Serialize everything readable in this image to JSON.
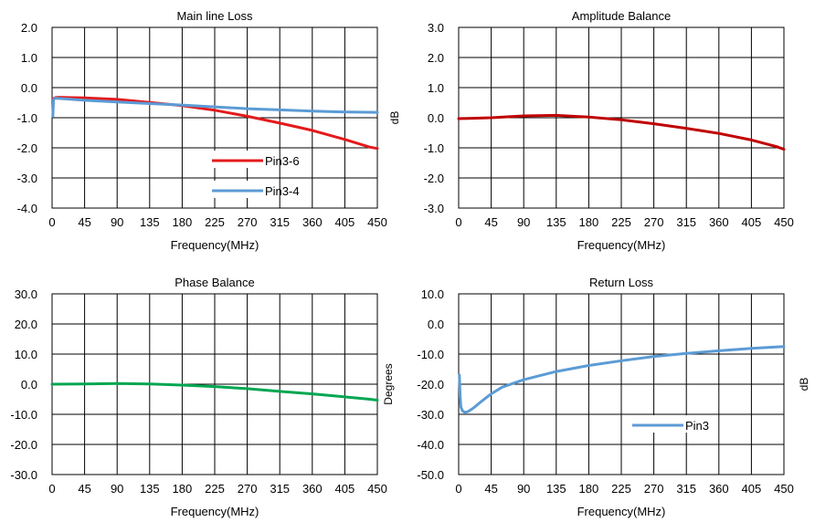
{
  "chart_data": [
    {
      "type": "line",
      "title": "Main line Loss",
      "xlabel": "Frequency(MHz)",
      "ylabel": "",
      "xlim": [
        0,
        450
      ],
      "ylim": [
        -4.0,
        2.0
      ],
      "xticks": [
        "0",
        "45",
        "90",
        "135",
        "180",
        "225",
        "270",
        "315",
        "360",
        "405",
        "450"
      ],
      "yticks": [
        "2.0",
        "1.0",
        "0.0",
        "-1.0",
        "-2.0",
        "-3.0",
        "-4.0"
      ],
      "grid": true,
      "legend": "lower-right",
      "series": [
        {
          "name": "Pin3-6",
          "color": "#e41a1c",
          "x": [
            1,
            5,
            10,
            22,
            45,
            90,
            135,
            180,
            225,
            270,
            315,
            360,
            405,
            440,
            450
          ],
          "y": [
            -0.38,
            -0.33,
            -0.32,
            -0.33,
            -0.34,
            -0.39,
            -0.49,
            -0.6,
            -0.75,
            -0.95,
            -1.18,
            -1.42,
            -1.72,
            -1.98,
            -2.02
          ]
        },
        {
          "name": "Pin3-4",
          "color": "#5b9bd5",
          "x": [
            1,
            2,
            4,
            10,
            45,
            90,
            135,
            180,
            225,
            270,
            315,
            360,
            405,
            450
          ],
          "y": [
            -0.95,
            -0.4,
            -0.35,
            -0.36,
            -0.42,
            -0.48,
            -0.53,
            -0.58,
            -0.64,
            -0.7,
            -0.74,
            -0.78,
            -0.81,
            -0.82
          ]
        }
      ]
    },
    {
      "type": "line",
      "title": "Amplitude Balance",
      "xlabel": "Frequency(MHz)",
      "ylabel": "dB",
      "xlim": [
        0,
        450
      ],
      "ylim": [
        -3.0,
        3.0
      ],
      "xticks": [
        "0",
        "45",
        "90",
        "135",
        "180",
        "225",
        "270",
        "315",
        "360",
        "405",
        "450"
      ],
      "yticks": [
        "3.0",
        "2.0",
        "1.0",
        "0.0",
        "-1.0",
        "-2.0",
        "-3.0"
      ],
      "grid": true,
      "series": [
        {
          "name": "",
          "color": "#c00000",
          "x": [
            0,
            45,
            90,
            135,
            180,
            225,
            270,
            315,
            360,
            405,
            440,
            450
          ],
          "y": [
            -0.03,
            0.0,
            0.06,
            0.08,
            0.02,
            -0.07,
            -0.2,
            -0.35,
            -0.52,
            -0.74,
            -0.96,
            -1.05
          ]
        }
      ]
    },
    {
      "type": "line",
      "title": "Phase Balance",
      "xlabel": "Frequency(MHz)",
      "ylabel": "Degrees",
      "xlim": [
        0,
        450
      ],
      "ylim": [
        -30.0,
        30.0
      ],
      "xticks": [
        "0",
        "45",
        "90",
        "135",
        "180",
        "225",
        "270",
        "315",
        "360",
        "405",
        "450"
      ],
      "yticks": [
        "30.0",
        "20.0",
        "10.0",
        "0.0",
        "-10.0",
        "-20.0",
        "-30.0"
      ],
      "grid": true,
      "series": [
        {
          "name": "",
          "color": "#00a651",
          "x": [
            0,
            45,
            90,
            135,
            180,
            225,
            270,
            315,
            360,
            405,
            440,
            450
          ],
          "y": [
            0.0,
            0.1,
            0.2,
            0.1,
            -0.3,
            -0.8,
            -1.5,
            -2.4,
            -3.2,
            -4.2,
            -5.0,
            -5.3
          ]
        }
      ]
    },
    {
      "type": "line",
      "title": "Return Loss",
      "xlabel": "Frequency(MHz)",
      "ylabel": "dB",
      "xlim": [
        0,
        450
      ],
      "ylim": [
        -50.0,
        10.0
      ],
      "xticks": [
        "0",
        "45",
        "90",
        "135",
        "180",
        "225",
        "270",
        "315",
        "360",
        "405",
        "450"
      ],
      "yticks": [
        "10.0",
        "0.0",
        "-10.0",
        "-20.0",
        "-30.0",
        "-40.0",
        "-50.0"
      ],
      "grid": true,
      "legend": "lower-right",
      "series": [
        {
          "name": "Pin3",
          "color": "#5b9bd5",
          "x": [
            1,
            2,
            3,
            5,
            8,
            12,
            20,
            30,
            45,
            60,
            90,
            135,
            180,
            225,
            270,
            315,
            360,
            405,
            450
          ],
          "y": [
            -17,
            -24,
            -27.5,
            -28.8,
            -29.3,
            -29.2,
            -28.0,
            -26.0,
            -23.2,
            -21.0,
            -18.5,
            -15.8,
            -13.8,
            -12.2,
            -10.8,
            -9.8,
            -8.9,
            -8.1,
            -7.5
          ]
        }
      ]
    }
  ]
}
